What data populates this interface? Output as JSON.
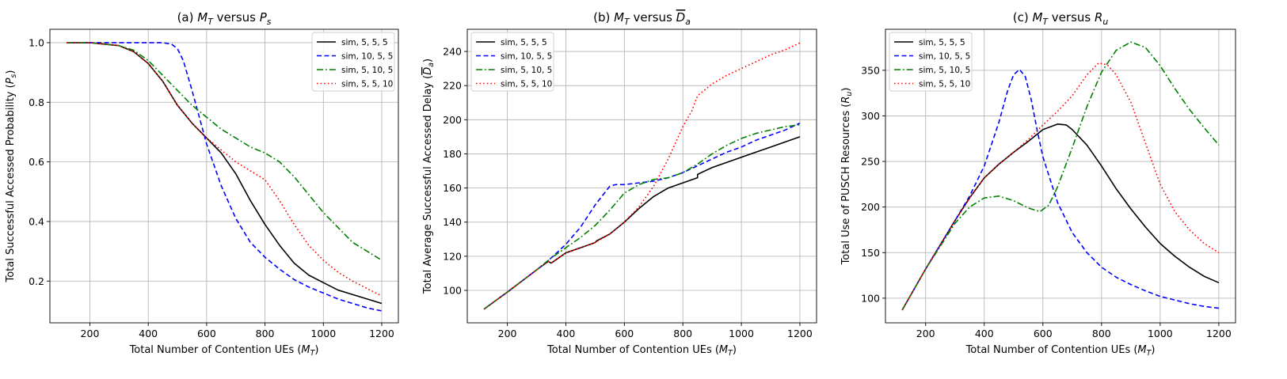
{
  "chart_data": [
    {
      "type": "line",
      "title": "(a) M_T versus P_s",
      "title_parts": [
        "(a) ",
        "M",
        "T",
        " versus ",
        "P",
        "s"
      ],
      "xlabel": "Total Number of Contention UEs (M_T)",
      "xlabel_parts": [
        "Total Number of Contention UEs (",
        "M",
        "T",
        ")"
      ],
      "ylabel": "Total Successful Accessed Probability (P_s)",
      "ylabel_parts": [
        "Total Successful Accessed Probability (",
        "P",
        "s",
        ")"
      ],
      "xlim": [
        63,
        1257
      ],
      "ylim": [
        0.06,
        1.045
      ],
      "xticks": [
        200,
        400,
        600,
        800,
        1000,
        1200
      ],
      "yticks": [
        0.2,
        0.4,
        0.6,
        0.8,
        1.0
      ],
      "ytick_labels": [
        "0.2",
        "0.4",
        "0.6",
        "0.8",
        "1.0"
      ],
      "grid": true,
      "legend_position": "upper right",
      "series": [
        {
          "name": "sim, 5, 5, 5",
          "color": "#000000",
          "style": "solid",
          "x": [
            120,
            200,
            300,
            350,
            400,
            450,
            500,
            550,
            600,
            650,
            700,
            750,
            800,
            850,
            900,
            950,
            1000,
            1050,
            1100,
            1150,
            1200
          ],
          "y": [
            1.0,
            1.0,
            0.99,
            0.97,
            0.93,
            0.87,
            0.79,
            0.73,
            0.68,
            0.63,
            0.56,
            0.47,
            0.39,
            0.32,
            0.26,
            0.22,
            0.195,
            0.17,
            0.155,
            0.14,
            0.125
          ]
        },
        {
          "name": "sim, 10, 5, 5",
          "color": "#0000ff",
          "style": "dashed",
          "x": [
            120,
            200,
            300,
            400,
            450,
            480,
            500,
            520,
            550,
            600,
            650,
            700,
            750,
            800,
            850,
            900,
            950,
            1000,
            1050,
            1100,
            1150,
            1200
          ],
          "y": [
            1.0,
            1.0,
            1.0,
            1.0,
            1.0,
            0.995,
            0.98,
            0.94,
            0.84,
            0.66,
            0.52,
            0.41,
            0.33,
            0.28,
            0.24,
            0.205,
            0.18,
            0.16,
            0.14,
            0.125,
            0.11,
            0.1
          ]
        },
        {
          "name": "sim, 5, 10, 5",
          "color": "#008000",
          "style": "dashdot",
          "x": [
            120,
            200,
            300,
            350,
            400,
            450,
            500,
            550,
            600,
            650,
            700,
            750,
            800,
            850,
            900,
            950,
            1000,
            1050,
            1100,
            1150,
            1200
          ],
          "y": [
            1.0,
            1.0,
            0.99,
            0.975,
            0.94,
            0.89,
            0.84,
            0.79,
            0.75,
            0.71,
            0.68,
            0.65,
            0.63,
            0.6,
            0.55,
            0.49,
            0.43,
            0.38,
            0.33,
            0.3,
            0.27
          ]
        },
        {
          "name": "sim, 5, 5, 10",
          "color": "#ff0000",
          "style": "dotted",
          "x": [
            120,
            200,
            300,
            350,
            400,
            450,
            500,
            550,
            600,
            650,
            700,
            750,
            800,
            850,
            900,
            950,
            1000,
            1050,
            1100,
            1150,
            1200
          ],
          "y": [
            1.0,
            1.0,
            0.99,
            0.97,
            0.93,
            0.87,
            0.79,
            0.73,
            0.68,
            0.64,
            0.6,
            0.57,
            0.54,
            0.47,
            0.39,
            0.32,
            0.27,
            0.23,
            0.2,
            0.175,
            0.15
          ]
        }
      ]
    },
    {
      "type": "line",
      "title": "(b) M_T versus D_a (overlined)",
      "title_parts": [
        "(b) ",
        "M",
        "T",
        " versus ",
        "D",
        "a"
      ],
      "xlabel": "Total Number of Contention UEs (M_T)",
      "xlabel_parts": [
        "Total Number of Contention UEs (",
        "M",
        "T",
        ")"
      ],
      "ylabel": "Total Average Successful Accessed Delay (D_a)",
      "ylabel_parts": [
        "Total Average Successful Accessed Delay (",
        "D",
        "a",
        ")"
      ],
      "xlim": [
        63,
        1257
      ],
      "ylim": [
        81,
        253
      ],
      "xticks": [
        200,
        400,
        600,
        800,
        1000,
        1200
      ],
      "yticks": [
        100,
        120,
        140,
        160,
        180,
        200,
        220,
        240
      ],
      "ytick_labels": [
        "100",
        "120",
        "140",
        "160",
        "180",
        "200",
        "220",
        "240"
      ],
      "grid": true,
      "legend_position": "upper left",
      "series": [
        {
          "name": "sim, 5, 5, 5",
          "color": "#000000",
          "style": "solid",
          "x": [
            120,
            200,
            300,
            340,
            350,
            400,
            450,
            500,
            505,
            550,
            600,
            650,
            700,
            750,
            800,
            850,
            850.5,
            900,
            950,
            1000,
            1050,
            1100,
            1150,
            1200
          ],
          "y": [
            89,
            99,
            112,
            117,
            116,
            122,
            125,
            128,
            129,
            133,
            140,
            148,
            155,
            160,
            163,
            166,
            168,
            172,
            175,
            178,
            181,
            184,
            187,
            190
          ]
        },
        {
          "name": "sim, 10, 5, 5",
          "color": "#0000ff",
          "style": "dashed",
          "x": [
            120,
            200,
            300,
            350,
            400,
            450,
            500,
            550,
            570,
            600,
            650,
            700,
            750,
            800,
            850,
            900,
            950,
            1000,
            1050,
            1100,
            1150,
            1200
          ],
          "y": [
            89,
            99,
            112,
            119,
            127,
            137,
            150,
            161,
            162,
            162,
            163,
            164,
            166,
            169,
            173,
            177,
            181,
            184,
            188,
            191,
            194,
            198
          ]
        },
        {
          "name": "sim, 5, 10, 5",
          "color": "#008000",
          "style": "dashdot",
          "x": [
            120,
            200,
            300,
            350,
            400,
            450,
            500,
            550,
            600,
            650,
            700,
            750,
            800,
            850,
            900,
            950,
            1000,
            1050,
            1100,
            1150,
            1200
          ],
          "y": [
            89,
            99,
            112,
            119,
            125,
            131,
            138,
            147,
            157,
            162,
            165,
            166,
            169,
            174,
            180,
            185,
            189,
            192,
            194,
            196,
            197
          ]
        },
        {
          "name": "sim, 5, 5, 10",
          "color": "#ff0000",
          "style": "dotted",
          "x": [
            120,
            200,
            300,
            340,
            350,
            400,
            450,
            500,
            550,
            600,
            650,
            700,
            750,
            800,
            830,
            850,
            900,
            950,
            1000,
            1050,
            1100,
            1150,
            1200
          ],
          "y": [
            89,
            99,
            112,
            117,
            116,
            122,
            125,
            128,
            133,
            140,
            149,
            161,
            177,
            196,
            205,
            214,
            221,
            226,
            230,
            234,
            238,
            241,
            245
          ]
        }
      ]
    },
    {
      "type": "line",
      "title": "(c) M_T versus R_u",
      "title_parts": [
        "(c) ",
        "M",
        "T",
        " versus ",
        "R",
        "u"
      ],
      "xlabel": "Total Number of Contention UEs (M_T)",
      "xlabel_parts": [
        "Total Number of Contention UEs (",
        "M",
        "T",
        ")"
      ],
      "ylabel": "Total Use of PUSCH Resources (R_u)",
      "ylabel_parts": [
        "Total Use of PUSCH Resources (",
        "R",
        "u",
        ")"
      ],
      "xlim": [
        63,
        1257
      ],
      "ylim": [
        73,
        395
      ],
      "xticks": [
        200,
        400,
        600,
        800,
        1000,
        1200
      ],
      "yticks": [
        100,
        150,
        200,
        250,
        300,
        350
      ],
      "ytick_labels": [
        "100",
        "150",
        "200",
        "250",
        "300",
        "350"
      ],
      "grid": true,
      "legend_position": "upper left",
      "series": [
        {
          "name": "sim, 5, 5, 5",
          "color": "#000000",
          "style": "solid",
          "x": [
            120,
            200,
            300,
            350,
            400,
            450,
            500,
            550,
            600,
            650,
            680,
            700,
            750,
            800,
            850,
            900,
            950,
            1000,
            1050,
            1100,
            1150,
            1200
          ],
          "y": [
            87,
            132,
            185,
            210,
            232,
            247,
            260,
            272,
            285,
            291,
            290,
            285,
            268,
            245,
            220,
            198,
            178,
            160,
            146,
            134,
            124,
            117
          ]
        },
        {
          "name": "sim, 10, 5, 5",
          "color": "#0000ff",
          "style": "dashed",
          "x": [
            120,
            200,
            300,
            350,
            400,
            450,
            480,
            500,
            520,
            540,
            560,
            580,
            600,
            650,
            700,
            750,
            800,
            850,
            900,
            950,
            1000,
            1050,
            1100,
            1150,
            1200
          ],
          "y": [
            87,
            132,
            185,
            212,
            245,
            293,
            328,
            345,
            351,
            343,
            318,
            285,
            255,
            205,
            172,
            150,
            134,
            123,
            115,
            108,
            102,
            98,
            94,
            91,
            89
          ]
        },
        {
          "name": "sim, 5, 10, 5",
          "color": "#008000",
          "style": "dashdot",
          "x": [
            120,
            200,
            300,
            350,
            400,
            450,
            500,
            550,
            590,
            620,
            650,
            700,
            750,
            800,
            850,
            900,
            950,
            1000,
            1050,
            1100,
            1150,
            1200
          ],
          "y": [
            87,
            132,
            182,
            200,
            210,
            212,
            207,
            199,
            195,
            202,
            222,
            265,
            310,
            348,
            372,
            381,
            375,
            355,
            330,
            307,
            287,
            268
          ]
        },
        {
          "name": "sim, 5, 5, 10",
          "color": "#ff0000",
          "style": "dotted",
          "x": [
            120,
            200,
            300,
            350,
            400,
            450,
            500,
            550,
            600,
            650,
            700,
            750,
            790,
            820,
            850,
            900,
            950,
            1000,
            1050,
            1100,
            1150,
            1200
          ],
          "y": [
            87,
            132,
            185,
            210,
            232,
            247,
            260,
            274,
            290,
            305,
            322,
            345,
            358,
            356,
            345,
            315,
            270,
            225,
            195,
            175,
            160,
            150
          ]
        }
      ]
    }
  ]
}
